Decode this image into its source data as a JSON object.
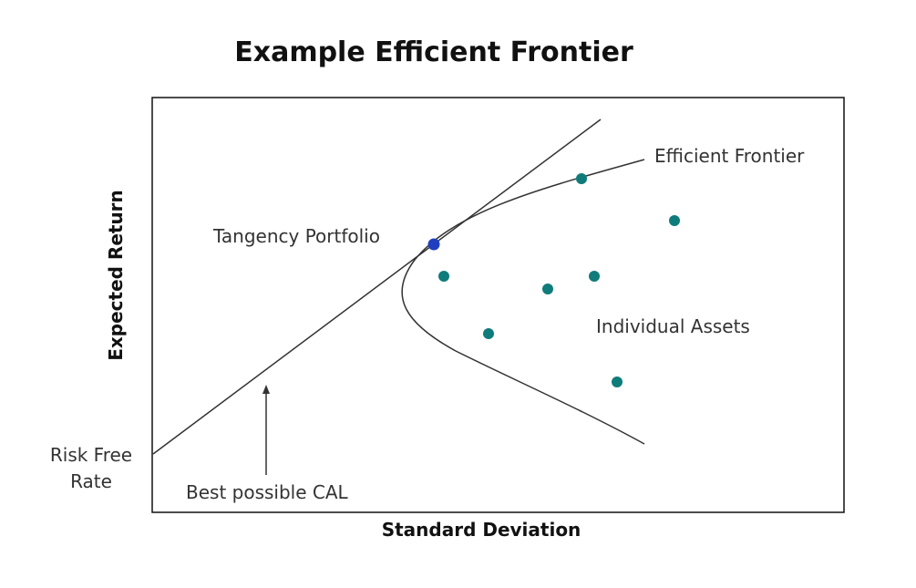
{
  "chart_data": {
    "type": "scatter",
    "title": "Example Efficient Frontier",
    "xlabel": "Standard Deviation",
    "ylabel": "Expected Return",
    "grid": false,
    "legend": "none",
    "axis_ticks": false,
    "colors": {
      "assets": "#0e7c7b",
      "tangency": "#1f3fbf",
      "lines": "#333333",
      "frame": "#111111"
    },
    "annotations": {
      "efficient_frontier": "Efficient Frontier",
      "tangency_portfolio": "Tangency Portfolio",
      "individual_assets": "Individual Assets",
      "risk_free_rate_line1": "Risk Free",
      "risk_free_rate_line2": "Rate",
      "best_cal": "Best possible CAL"
    }
  }
}
